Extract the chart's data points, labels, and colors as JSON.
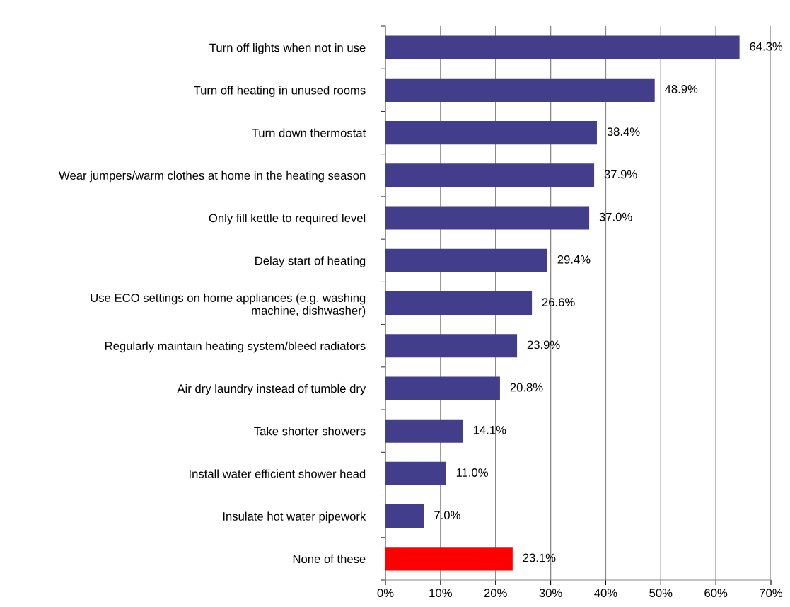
{
  "chart_data": {
    "type": "bar",
    "orientation": "horizontal",
    "categories": [
      "Turn off lights when not in use",
      "Turn off heating in unused rooms",
      "Turn down thermostat",
      "Wear jumpers/warm clothes at home in the heating season",
      "Only fill kettle to required level",
      "Delay start of heating",
      "Use ECO settings on home appliances (e.g. washing\nmachine, dishwasher)",
      "Regularly maintain heating system/bleed radiators",
      "Air dry laundry instead of tumble dry",
      "Take shorter showers",
      "Install water efficient shower head",
      "Insulate hot water pipework",
      "None of these"
    ],
    "values": [
      64.3,
      48.9,
      38.4,
      37.9,
      37.0,
      29.4,
      26.6,
      23.9,
      20.8,
      14.1,
      11.0,
      7.0,
      23.1
    ],
    "value_labels": [
      "64.3%",
      "48.9%",
      "38.4%",
      "37.9%",
      "37.0%",
      "29.4%",
      "26.6%",
      "23.9%",
      "20.8%",
      "14.1%",
      "11.0%",
      "7.0%",
      "23.1%"
    ],
    "colors": [
      "#433e8c",
      "#433e8c",
      "#433e8c",
      "#433e8c",
      "#433e8c",
      "#433e8c",
      "#433e8c",
      "#433e8c",
      "#433e8c",
      "#433e8c",
      "#433e8c",
      "#433e8c",
      "#ff0000"
    ],
    "xlim": [
      0,
      70
    ],
    "xticks": [
      {
        "value": 0,
        "label": "0%"
      },
      {
        "value": 10,
        "label": "10%"
      },
      {
        "value": 20,
        "label": "20%"
      },
      {
        "value": 30,
        "label": "30%"
      },
      {
        "value": 40,
        "label": "40%"
      },
      {
        "value": 50,
        "label": "50%"
      },
      {
        "value": 60,
        "label": "60%"
      },
      {
        "value": 70,
        "label": "70%"
      }
    ],
    "grid": "x",
    "legend": false
  }
}
